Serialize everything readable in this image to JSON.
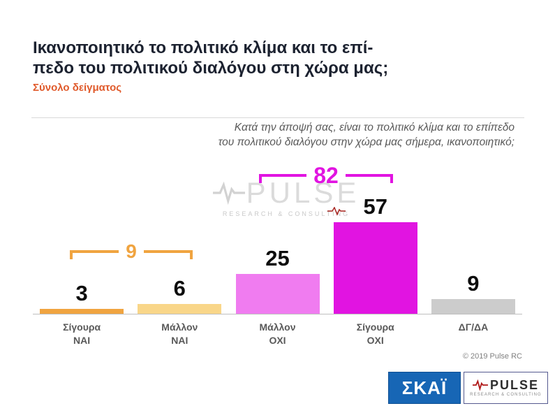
{
  "header": {
    "title_line1": "Ικανοποιητικό το πολιτικό κλίμα και το επί-",
    "title_line2": "πεδο του πολιτικού διαλόγου στη χώρα μας;",
    "subtitle": "Σύνολο δείγματος",
    "subtitle_color": "#E05A2B"
  },
  "question": {
    "line1": "Κατά την άποψή σας, είναι το πολιτικό κλίμα και το επίπεδο",
    "line2": "του πολιτικού διαλόγου στην χώρα μας σήμερα, ικανοποιητικό;"
  },
  "chart_data": {
    "type": "bar",
    "title": "Ικανοποιητικό το πολιτικό κλίμα και το επίπεδο του πολιτικού διαλόγου στη χώρα μας;",
    "subtitle": "Σύνολο δείγματος",
    "categories": [
      "Σίγουρα ΝΑΙ",
      "Μάλλον ΝΑΙ",
      "Μάλλον ΟΧΙ",
      "Σίγουρα ΟΧΙ",
      "ΔΓ/ΔΑ"
    ],
    "values": [
      3,
      6,
      25,
      57,
      9
    ],
    "bar_colors": [
      "#F0A440",
      "#F9D689",
      "#F07CF0",
      "#E114E1",
      "#CCCCCC"
    ],
    "groups": [
      {
        "label": "9",
        "categories": [
          "Σίγουρα ΝΑΙ",
          "Μάλλον ΝΑΙ"
        ],
        "color": "#F0A440"
      },
      {
        "label": "82",
        "categories": [
          "Μάλλον ΟΧΙ",
          "Σίγουρα ΟΧΙ"
        ],
        "color": "#E114E1"
      }
    ],
    "ylim": [
      0,
      60
    ],
    "value_labels": true,
    "legend": false,
    "grid": false
  },
  "watermark": {
    "text": "PULSE",
    "subtext": "RESEARCH & CONSULTING"
  },
  "footer": {
    "copyright": "© 2019 Pulse RC"
  },
  "logos": {
    "skai": {
      "text": "ΣΚΑΪ",
      "bg_color": "#1766B5"
    },
    "pulse": {
      "text": "PULSE",
      "subtext": "RESEARCH & CONSULTING"
    }
  }
}
